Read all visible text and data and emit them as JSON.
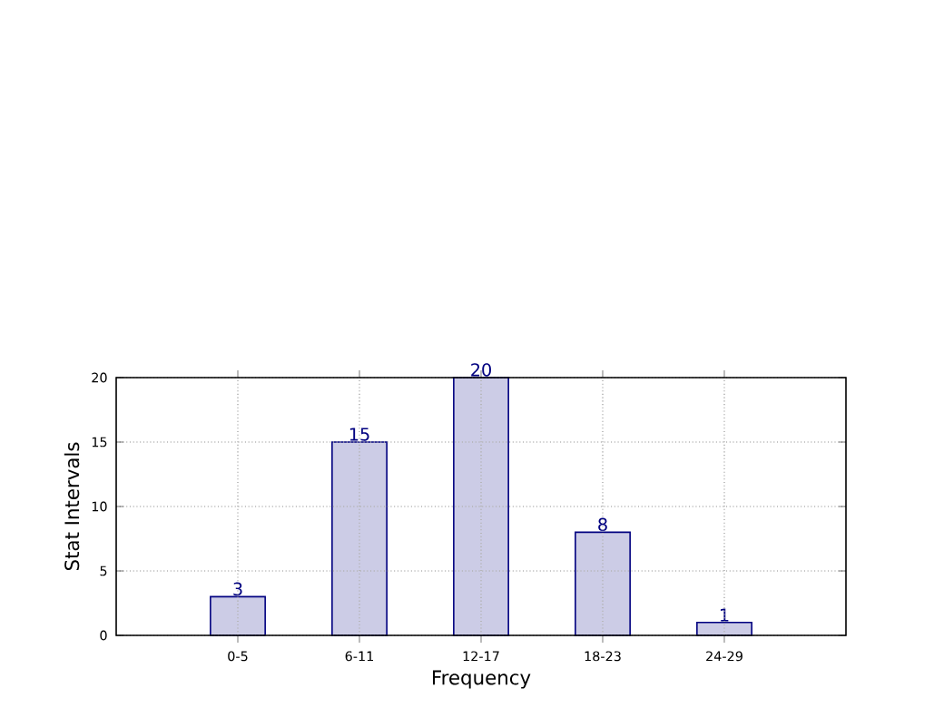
{
  "chart_data": {
    "type": "bar",
    "xlabel": "Frequency",
    "ylabel": "Stat Intervals",
    "categories": [
      "0-5",
      "6-11",
      "12-17",
      "18-23",
      "24-29"
    ],
    "values": [
      3,
      15,
      20,
      8,
      1
    ],
    "color": "#ccccE6",
    "ylim": [
      0,
      20
    ],
    "yticks": [
      0,
      5,
      10,
      15,
      20
    ],
    "grid": true,
    "data_labels": true
  }
}
